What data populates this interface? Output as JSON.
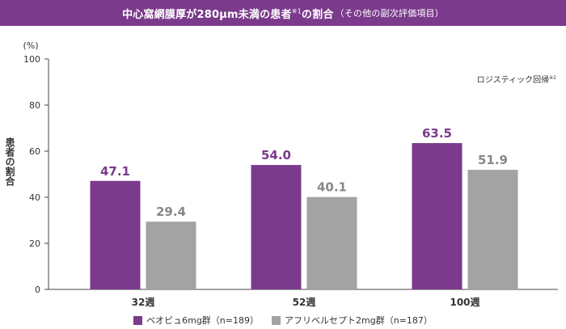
{
  "title": {
    "main": "中心窩網膜厚が280μm未満の患者",
    "note": "※1",
    "suffix": "の割合",
    "sub": "（その他の副次評価項目）"
  },
  "colors": {
    "banner": "#7b3a8c",
    "brolucizumab": "#7b3a8c",
    "aflibercept": "#a3a3a3",
    "value_label_primary": "#7b3a8c",
    "value_label_secondary": "#888888"
  },
  "chart_data": {
    "type": "bar",
    "categories": [
      "32週",
      "52週",
      "100週"
    ],
    "series": [
      {
        "name": "ベオビュ6mg群（n=189）",
        "values": [
          47.1,
          54.0,
          63.5
        ]
      },
      {
        "name": "アフリベルセプト2mg群（n=187）",
        "values": [
          29.4,
          40.1,
          51.9
        ]
      }
    ],
    "value_labels": [
      [
        "47.1",
        "54.0",
        "63.5"
      ],
      [
        "29.4",
        "40.1",
        "51.9"
      ]
    ],
    "ylabel": "患者の割合",
    "yunit": "(%)",
    "ylim": [
      0,
      100
    ],
    "yticks": [
      0,
      20,
      40,
      60,
      80,
      100
    ],
    "ytick_labels": [
      "0",
      "20",
      "40",
      "60",
      "80",
      "100"
    ],
    "grid": false,
    "legend_position": "bottom-center",
    "annotation": "ロジスティック回帰",
    "annotation_note": "※2"
  }
}
